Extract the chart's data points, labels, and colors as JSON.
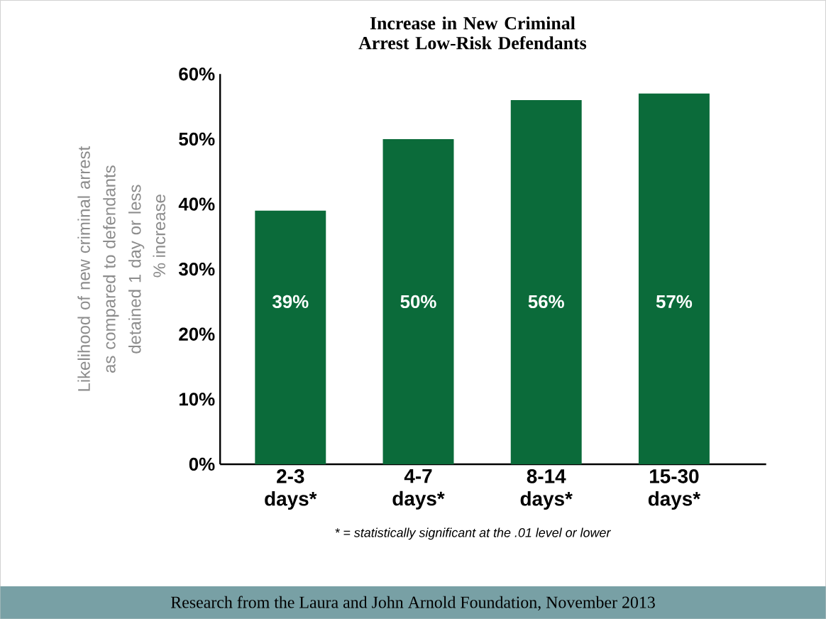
{
  "chart_data": {
    "type": "bar",
    "title": "Increase in New Criminal Arrest Low-Risk Defendants",
    "ylabel": "Likelihood of new criminal arrest as compared to defendants detained 1 day or less",
    "categories": [
      "2-3 days*",
      "4-7 days*",
      "8-14 days*",
      "15-30 days*"
    ],
    "values": [
      39,
      50,
      56,
      57
    ],
    "value_labels": [
      "39%",
      "50%",
      "56%",
      "57%"
    ],
    "color": "#0b6b3a",
    "ylim": [
      0,
      60
    ],
    "yticks": [
      {
        "value": 0,
        "label": "0%"
      },
      {
        "value": 10,
        "label": "10%"
      },
      {
        "value": 20,
        "label": "20%"
      },
      {
        "value": 30,
        "label": "30%"
      },
      {
        "value": 40,
        "label": "40%"
      },
      {
        "value": 50,
        "label": "50%"
      },
      {
        "value": 60,
        "label": "60%"
      }
    ],
    "grid": false,
    "annotations": [
      "% increase",
      "* = statistically significant at the .01 level or lower",
      "Research from the Laura and John Arnold Foundation, November 2013"
    ]
  }
}
